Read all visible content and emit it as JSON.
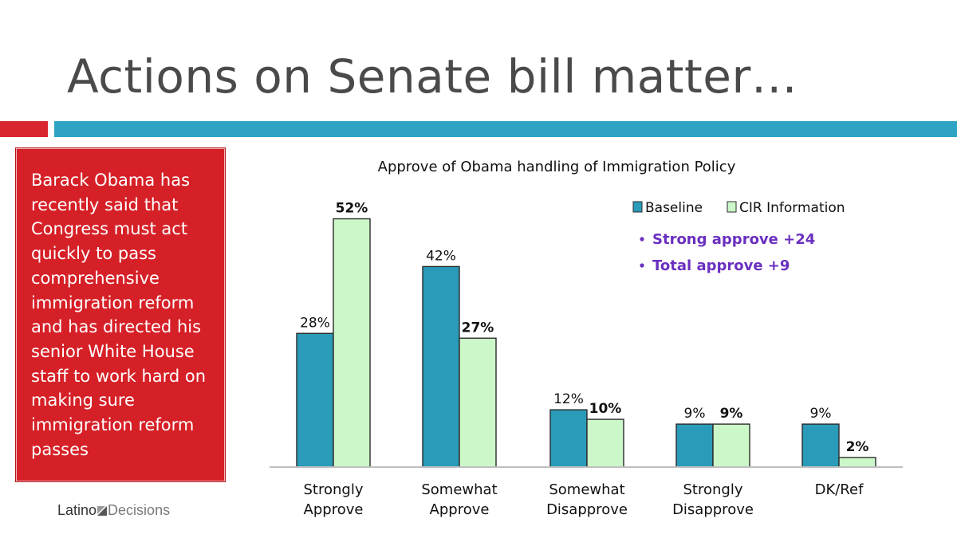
{
  "slide": {
    "title": "Actions on Senate bill matter…",
    "callout_text": "Barack Obama has recently said that Congress must act quickly to pass comprehensive immigration reform and has directed his senior White House staff to work hard on making sure immigration reform passes",
    "brand_first": "Latino",
    "brand_second": "Decisions"
  },
  "colors": {
    "accent_red": "#d62027",
    "accent_teal": "#2fa3c4",
    "baseline_bar": "#2a9bb8",
    "cir_bar": "#ccf7c8",
    "note_purple": "#6a2fbf"
  },
  "notes": [
    "Strong approve +24",
    "Total approve +9"
  ],
  "chart_data": {
    "type": "bar",
    "title": "Approve of Obama handling of Immigration Policy",
    "categories": [
      [
        "Strongly",
        "Approve"
      ],
      [
        "Somewhat",
        "Approve"
      ],
      [
        "Somewhat",
        "Disapprove"
      ],
      [
        "Strongly",
        "Disapprove"
      ],
      [
        "DK/Ref"
      ]
    ],
    "series": [
      {
        "name": "Baseline",
        "values": [
          28,
          42,
          12,
          9,
          9
        ],
        "labels": [
          "28%",
          "42%",
          "12%",
          "9%",
          "9%"
        ]
      },
      {
        "name": "CIR Information",
        "values": [
          52,
          27,
          10,
          9,
          2
        ],
        "labels": [
          "52%",
          "27%",
          "10%",
          "9%",
          "2%"
        ]
      }
    ],
    "ylim": [
      0,
      55
    ],
    "grid": false,
    "legend": "top-right"
  }
}
